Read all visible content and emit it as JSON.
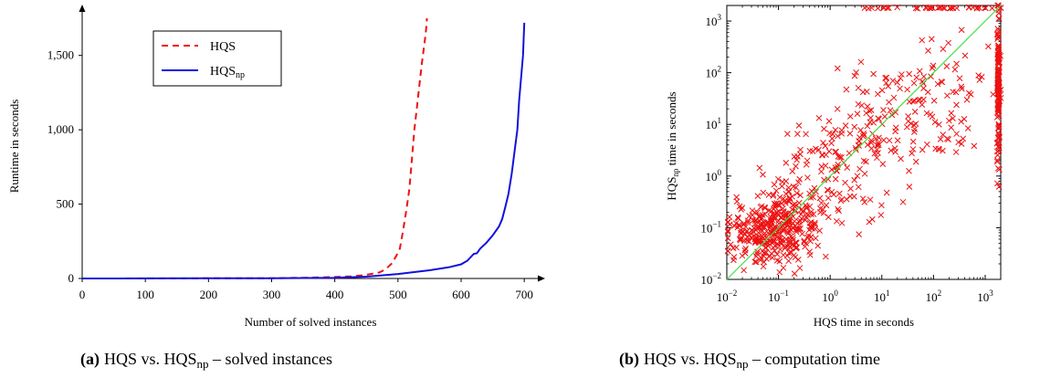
{
  "chart_data": [
    {
      "type": "line",
      "xlabel": "Number of solved instances",
      "ylabel": "Runtime in seconds",
      "xlim": [
        0,
        720
      ],
      "ylim": [
        0,
        1750
      ],
      "x_ticks": [
        "0",
        "100",
        "200",
        "300",
        "400",
        "500",
        "600",
        "700"
      ],
      "y_ticks": [
        "0",
        "500",
        "1,000",
        "1,500"
      ],
      "legend_position": "top-left",
      "series": [
        {
          "name": "HQS",
          "legend_main": "HQS",
          "legend_sub": "",
          "style": "dashed",
          "color": "#ee1111",
          "x": [
            0,
            100,
            200,
            300,
            350,
            400,
            430,
            450,
            470,
            480,
            490,
            497,
            503,
            508,
            513,
            518,
            522,
            526,
            530,
            534,
            538,
            541,
            544,
            546
          ],
          "y": [
            0,
            0.5,
            1,
            2,
            5,
            10,
            15,
            25,
            40,
            60,
            100,
            150,
            200,
            320,
            450,
            600,
            800,
            1000,
            1150,
            1300,
            1450,
            1550,
            1650,
            1750
          ]
        },
        {
          "name": "HQSnp",
          "legend_main": "HQS",
          "legend_sub": "np",
          "style": "solid",
          "color": "#1111dd",
          "x": [
            0,
            100,
            200,
            300,
            400,
            450,
            500,
            550,
            580,
            600,
            610,
            620,
            625,
            630,
            640,
            650,
            660,
            665,
            670,
            675,
            680,
            683,
            686,
            689,
            692,
            695,
            698,
            700
          ],
          "y": [
            0,
            0.5,
            1,
            2,
            5,
            12,
            30,
            55,
            75,
            95,
            120,
            165,
            170,
            200,
            240,
            290,
            350,
            400,
            480,
            570,
            700,
            800,
            900,
            1000,
            1200,
            1350,
            1500,
            1720
          ]
        }
      ]
    },
    {
      "type": "scatter",
      "xlabel": "HQS time in seconds",
      "ylabel_main": "HQS",
      "ylabel_sub": "np",
      "ylabel_rest": " time in seconds",
      "x_scale": "log",
      "y_scale": "log",
      "xlim": [
        0.01,
        2000
      ],
      "ylim": [
        0.01,
        2000
      ],
      "tick_base": "10",
      "x_tick_exponents": [
        "−2",
        "−1",
        "0",
        "1",
        "2",
        "3"
      ],
      "y_tick_exponents": [
        "−2",
        "−1",
        "0",
        "1",
        "2",
        "3"
      ],
      "diagonal": {
        "color": "#44dd44",
        "from": [
          0.01,
          0.01
        ],
        "to": [
          2000,
          2000
        ]
      },
      "marker": "x",
      "marker_color": "#ee1111",
      "point_clusters": [
        {
          "x_center": 0.06,
          "y_center": 0.07,
          "x_spread": 0.7,
          "y_spread": 0.5,
          "n": 220
        },
        {
          "x_center": 0.15,
          "y_center": 0.14,
          "x_spread": 0.6,
          "y_spread": 0.6,
          "n": 140
        },
        {
          "x_center": 1.2,
          "y_center": 1.2,
          "x_spread": 1.0,
          "y_spread": 1.0,
          "n": 130
        },
        {
          "x_center": 20,
          "y_center": 15,
          "x_spread": 1.0,
          "y_spread": 1.0,
          "n": 110
        },
        {
          "x_center": 300,
          "y_center": 30,
          "x_spread": 0.9,
          "y_spread": 1.2,
          "n": 50
        },
        {
          "x_center": 1800,
          "y_center": 60,
          "x_spread": 0.02,
          "y_spread": 1.3,
          "n": 140
        },
        {
          "x_center": 200,
          "y_center": 1800,
          "x_spread": 1.3,
          "y_spread": 0.01,
          "n": 40
        }
      ]
    }
  ],
  "captions": {
    "a_label": "(a)",
    "a_main": "HQS vs. HQS",
    "a_sub": "np",
    "a_rest": " – solved instances",
    "b_label": "(b)",
    "b_main": "HQS vs. HQS",
    "b_sub": "np",
    "b_rest": " – computation time"
  }
}
